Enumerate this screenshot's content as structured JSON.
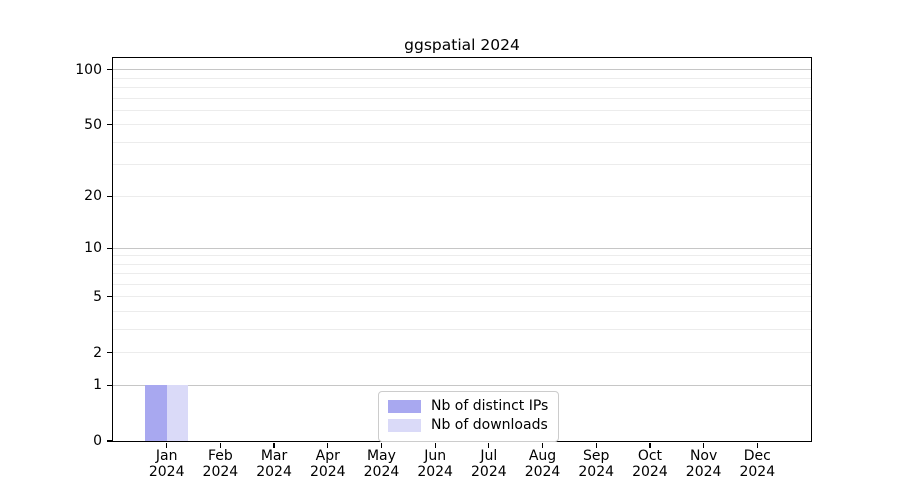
{
  "chart_data": {
    "type": "bar",
    "title": "ggspatial 2024",
    "x_year_label": "2024",
    "categories": [
      "Jan",
      "Feb",
      "Mar",
      "Apr",
      "May",
      "Jun",
      "Jul",
      "Aug",
      "Sep",
      "Oct",
      "Nov",
      "Dec"
    ],
    "series": [
      {
        "name": "Nb of distinct IPs",
        "color": "#a8a8f0",
        "values": [
          1,
          0,
          0,
          0,
          0,
          0,
          0,
          0,
          0,
          0,
          0,
          0
        ]
      },
      {
        "name": "Nb of downloads",
        "color": "#dadaf8",
        "values": [
          1,
          0,
          0,
          0,
          0,
          0,
          0,
          0,
          0,
          0,
          0,
          0
        ]
      }
    ],
    "y_axis": {
      "scale": "log1p",
      "min": 0,
      "max": 116,
      "tick_labels": [
        0,
        1,
        2,
        5,
        10,
        20,
        50,
        100
      ],
      "major_gridlines": [
        1,
        10,
        100
      ],
      "minor_gridlines": [
        2,
        3,
        4,
        5,
        6,
        7,
        8,
        9,
        20,
        30,
        40,
        50,
        60,
        70,
        80,
        90
      ],
      "major_grid_color": "#c6c6c6",
      "minor_grid_color": "#ececec"
    },
    "legend": {
      "position": "lower center"
    },
    "ylim": [
      0,
      116
    ],
    "grid": "on"
  }
}
